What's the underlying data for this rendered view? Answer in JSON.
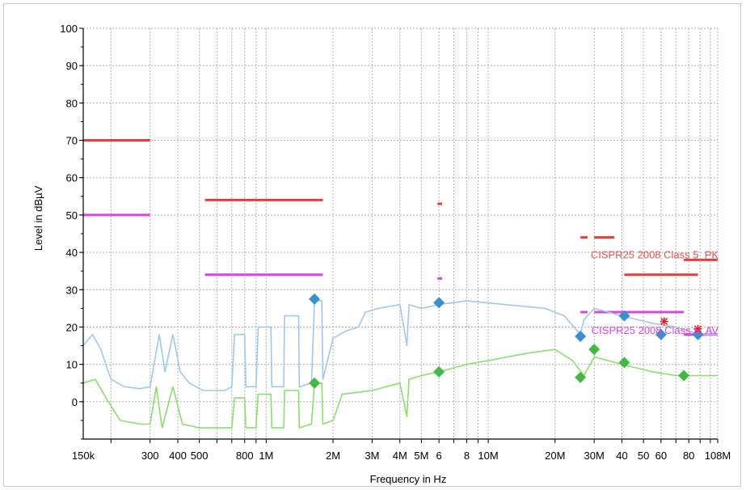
{
  "chart_data": {
    "type": "line",
    "xlabel": "Frequency in Hz",
    "ylabel": "Level in dBµV",
    "x_scale": "log",
    "xlim_hz": [
      150000,
      108000000
    ],
    "ylim": [
      -10,
      100
    ],
    "grid": true,
    "y_ticks": [
      {
        "value": 100,
        "label": "100"
      },
      {
        "value": 90,
        "label": "90"
      },
      {
        "value": 80,
        "label": "80"
      },
      {
        "value": 70,
        "label": "70"
      },
      {
        "value": 60,
        "label": "60"
      },
      {
        "value": 50,
        "label": "50"
      },
      {
        "value": 40,
        "label": "40"
      },
      {
        "value": 30,
        "label": "30"
      },
      {
        "value": 20,
        "label": "20"
      },
      {
        "value": 10,
        "label": "10"
      },
      {
        "value": 0,
        "label": "0"
      }
    ],
    "x_ticks": [
      {
        "hz": 150000,
        "label": "150k"
      },
      {
        "hz": 300000,
        "label": "300"
      },
      {
        "hz": 400000,
        "label": "400"
      },
      {
        "hz": 500000,
        "label": "500"
      },
      {
        "hz": 800000,
        "label": "800"
      },
      {
        "hz": 1000000,
        "label": "1M"
      },
      {
        "hz": 2000000,
        "label": "2M"
      },
      {
        "hz": 3000000,
        "label": "3M"
      },
      {
        "hz": 4000000,
        "label": "4M"
      },
      {
        "hz": 5000000,
        "label": "5M"
      },
      {
        "hz": 6000000,
        "label": "6"
      },
      {
        "hz": 8000000,
        "label": "8"
      },
      {
        "hz": 10000000,
        "label": "10M"
      },
      {
        "hz": 20000000,
        "label": "20M"
      },
      {
        "hz": 30000000,
        "label": "30M"
      },
      {
        "hz": 40000000,
        "label": "40"
      },
      {
        "hz": 50000000,
        "label": "50"
      },
      {
        "hz": 60000000,
        "label": "60"
      },
      {
        "hz": 80000000,
        "label": "80"
      },
      {
        "hz": 108000000,
        "label": "108M"
      }
    ],
    "annotations": [
      {
        "text": "CISPR25 2008 Class 5_PK",
        "hz": 109000000,
        "y": 39.5,
        "color": "#e85050"
      },
      {
        "text": "CISPR25 2008 Class 5_AV",
        "hz": 109000000,
        "y": 19.2,
        "color": "#dd44dd"
      }
    ],
    "limit_lines": [
      {
        "name": "PK",
        "color": "#e83c3c",
        "segments": [
          {
            "x1": 150000,
            "x2": 300000,
            "y": 70
          },
          {
            "x1": 530000,
            "x2": 1800000,
            "y": 54
          },
          {
            "x1": 5900000,
            "x2": 6200000,
            "y": 53
          },
          {
            "x1": 26000000,
            "x2": 28000000,
            "y": 44
          },
          {
            "x1": 30000000,
            "x2": 37000000,
            "y": 44
          },
          {
            "x1": 41000000,
            "x2": 88000000,
            "y": 34
          },
          {
            "x1": 76000000,
            "x2": 108000000,
            "y": 38
          }
        ]
      },
      {
        "name": "AV",
        "color": "#dd44dd",
        "segments": [
          {
            "x1": 150000,
            "x2": 300000,
            "y": 50
          },
          {
            "x1": 530000,
            "x2": 1800000,
            "y": 34
          },
          {
            "x1": 5900000,
            "x2": 6200000,
            "y": 33
          },
          {
            "x1": 26000000,
            "x2": 28000000,
            "y": 24
          },
          {
            "x1": 30000000,
            "x2": 76000000,
            "y": 24
          },
          {
            "x1": 76000000,
            "x2": 108000000,
            "y": 18
          }
        ]
      }
    ],
    "series": [
      {
        "color": "#9fc8ee",
        "kind": "line",
        "points": [
          [
            150000,
            15
          ],
          [
            165000,
            18
          ],
          [
            180000,
            14
          ],
          [
            200000,
            6
          ],
          [
            230000,
            4
          ],
          [
            270000,
            3.5
          ],
          [
            300000,
            4
          ],
          [
            330000,
            18
          ],
          [
            350000,
            8
          ],
          [
            380000,
            18
          ],
          [
            410000,
            8
          ],
          [
            450000,
            5
          ],
          [
            520000,
            3
          ],
          [
            650000,
            3
          ],
          [
            700000,
            4
          ],
          [
            720000,
            18
          ],
          [
            800000,
            18
          ],
          [
            810000,
            4
          ],
          [
            900000,
            4
          ],
          [
            920000,
            20
          ],
          [
            1050000,
            20
          ],
          [
            1060000,
            4
          ],
          [
            1200000,
            4
          ],
          [
            1210000,
            23
          ],
          [
            1400000,
            23
          ],
          [
            1410000,
            4
          ],
          [
            1600000,
            5
          ],
          [
            1650000,
            27
          ],
          [
            1780000,
            27
          ],
          [
            1800000,
            6
          ],
          [
            2000000,
            17
          ],
          [
            2300000,
            19
          ],
          [
            2600000,
            20
          ],
          [
            2800000,
            24
          ],
          [
            3200000,
            25
          ],
          [
            4000000,
            26
          ],
          [
            4300000,
            15
          ],
          [
            4400000,
            26
          ],
          [
            5000000,
            25
          ],
          [
            6000000,
            26
          ],
          [
            8000000,
            27
          ],
          [
            12000000,
            26
          ],
          [
            18000000,
            25
          ],
          [
            22000000,
            23
          ],
          [
            26000000,
            18
          ],
          [
            27000000,
            22
          ],
          [
            30000000,
            25
          ],
          [
            40000000,
            23
          ],
          [
            55000000,
            21
          ],
          [
            70000000,
            20
          ],
          [
            90000000,
            18
          ],
          [
            108000000,
            18
          ]
        ]
      },
      {
        "color": "#88e06a",
        "kind": "line",
        "points": [
          [
            150000,
            5
          ],
          [
            170000,
            6
          ],
          [
            190000,
            1
          ],
          [
            220000,
            -5
          ],
          [
            270000,
            -6
          ],
          [
            300000,
            -6
          ],
          [
            320000,
            4
          ],
          [
            340000,
            -7
          ],
          [
            380000,
            4
          ],
          [
            420000,
            -6
          ],
          [
            500000,
            -7
          ],
          [
            700000,
            -7
          ],
          [
            720000,
            1
          ],
          [
            800000,
            1
          ],
          [
            810000,
            -7
          ],
          [
            900000,
            -7
          ],
          [
            920000,
            2
          ],
          [
            1050000,
            2
          ],
          [
            1060000,
            -7
          ],
          [
            1200000,
            -7
          ],
          [
            1210000,
            3
          ],
          [
            1400000,
            3
          ],
          [
            1410000,
            -7
          ],
          [
            1600000,
            -6
          ],
          [
            1650000,
            5
          ],
          [
            1780000,
            5
          ],
          [
            1800000,
            -6
          ],
          [
            2000000,
            -5
          ],
          [
            2200000,
            2
          ],
          [
            3000000,
            3
          ],
          [
            4000000,
            5
          ],
          [
            4300000,
            -4
          ],
          [
            4400000,
            6
          ],
          [
            5000000,
            7
          ],
          [
            6000000,
            8
          ],
          [
            8000000,
            10
          ],
          [
            10000000,
            11
          ],
          [
            15000000,
            13
          ],
          [
            20000000,
            14
          ],
          [
            24000000,
            11
          ],
          [
            27000000,
            7
          ],
          [
            30000000,
            12
          ],
          [
            40000000,
            10
          ],
          [
            55000000,
            8
          ],
          [
            70000000,
            7
          ],
          [
            90000000,
            7
          ],
          [
            108000000,
            7
          ]
        ]
      }
    ],
    "markers": [
      {
        "color": "#3a8fd0",
        "shape": "diamond",
        "points": [
          [
            1650000,
            27.5
          ],
          [
            6000000,
            26.5
          ],
          [
            26000000,
            17.5
          ],
          [
            41000000,
            23
          ],
          [
            60000000,
            18
          ],
          [
            88000000,
            18
          ]
        ]
      },
      {
        "color": "#44b844",
        "shape": "diamond",
        "points": [
          [
            1650000,
            5
          ],
          [
            6000000,
            8
          ],
          [
            26000000,
            6.5
          ],
          [
            30000000,
            14
          ],
          [
            41000000,
            10.5
          ],
          [
            76000000,
            7
          ]
        ]
      },
      {
        "color": "#e02020",
        "shape": "star",
        "points": [
          [
            62000000,
            21.5
          ],
          [
            88000000,
            19.5
          ]
        ]
      }
    ]
  }
}
